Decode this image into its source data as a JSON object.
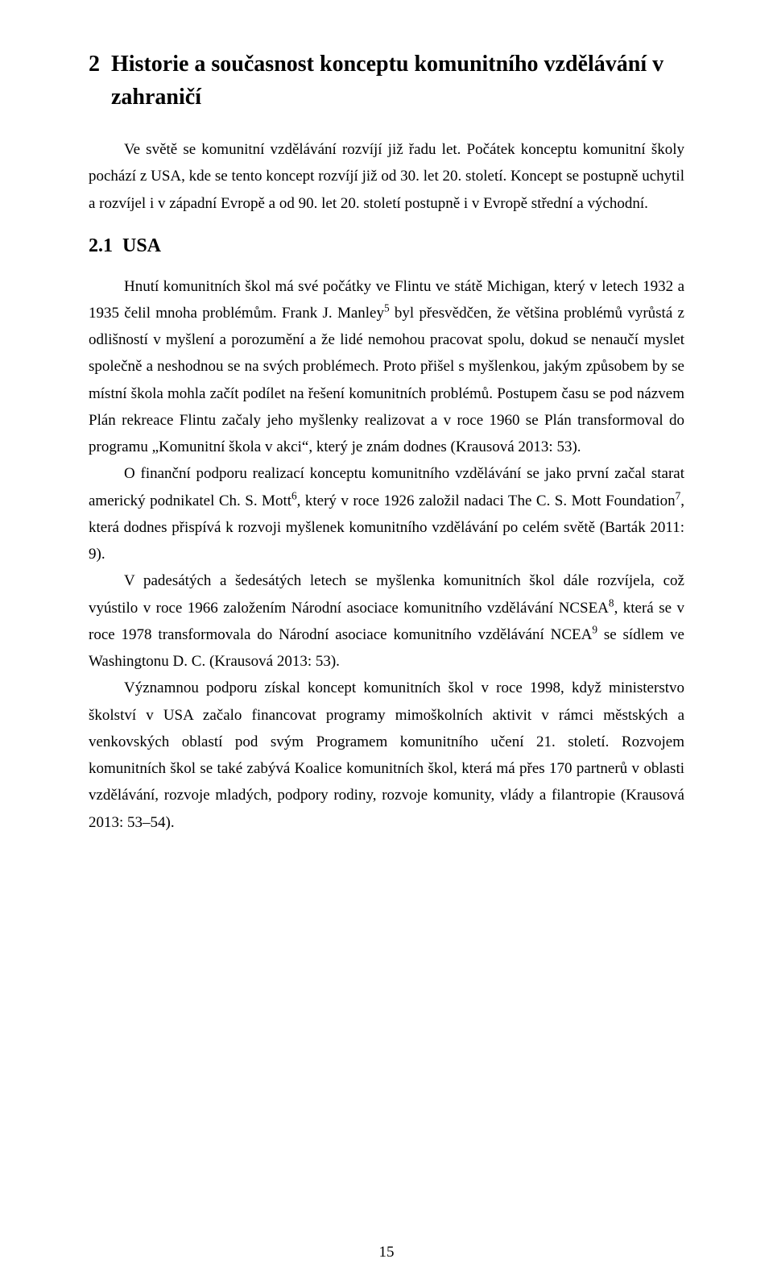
{
  "page": {
    "number": "15",
    "h1_num": "2",
    "h1_text": "Historie a současnost konceptu komunitního vzdělávání v zahraničí",
    "lead": "Ve světě se komunitní vzdělávání rozvíjí již řadu let. Počátek konceptu komunitní školy pochází z USA, kde se tento koncept rozvíjí již od 30. let 20. století. Koncept se postupně uchytil a rozvíjel i v západní Evropě a od 90. let 20. století postupně i v Evropě střední a východní.",
    "h2_num": "2.1",
    "h2_text": "USA",
    "p1_a": "Hnutí komunitních škol má své počátky ve Flintu ve státě Michigan, který v letech 1932 a 1935 čelil mnoha problémům. Frank J. Manley",
    "p1_sup": "5",
    "p1_b": " byl přesvědčen, že většina problémů vyrůstá z odlišností v myšlení a porozumění a že lidé nemohou pracovat spolu, dokud se nenaučí myslet společně a neshodnou se na svých problémech. Proto přišel s myšlenkou, jakým způsobem by se místní škola mohla začít podílet na řešení komunitních problémů. Postupem času se pod názvem Plán rekreace Flintu začaly jeho myšlenky realizovat a v roce 1960 se Plán transformoval do programu „Komunitní škola v akci“, který je znám dodnes (Krausová 2013: 53).",
    "p2_a": "O finanční podporu realizací konceptu komunitního vzdělávání se jako první začal starat americký podnikatel Ch. S. Mott",
    "p2_sup1": "6",
    "p2_b": ", který v roce 1926 založil nadaci The C. S. Mott Foundation",
    "p2_sup2": "7",
    "p2_c": ", která dodnes přispívá k rozvoji myšlenek komunitního vzdělávání po celém světě (Barták 2011: 9).",
    "p3_a": "V padesátých a šedesátých letech se myšlenka komunitních škol dále rozvíjela, což vyústilo v roce 1966 založením Národní asociace komunitního vzdělávání NCSEA",
    "p3_sup1": "8",
    "p3_b": ", která se v roce 1978 transformovala do Národní asociace komunitního vzdělávání NCEA",
    "p3_sup2": "9",
    "p3_c": " se sídlem ve Washingtonu D. C. (Krausová 2013: 53).",
    "p4": "Významnou podporu získal koncept komunitních škol v roce 1998, když ministerstvo školství v USA začalo financovat programy mimoškolních aktivit v rámci městských a venkovských oblastí pod svým Programem komunitního učení 21. století. Rozvojem komunitních škol se také zabývá Koalice komunitních škol, která má přes 170 partnerů v oblasti vzdělávání, rozvoje mladých, podpory rodiny, rozvoje komunity, vlády a filantropie (Krausová 2013: 53–54)."
  }
}
